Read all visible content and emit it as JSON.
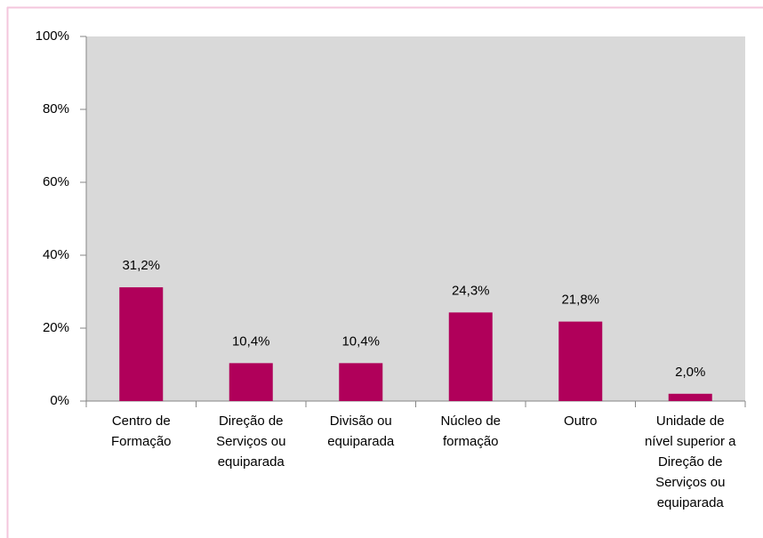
{
  "chart_data": {
    "type": "bar",
    "categories": [
      "Centro de Formação",
      "Direção de Serviços ou equiparada",
      "Divisão ou equiparada",
      "Núcleo de formação",
      "Outro",
      "Unidade de nível superior a Direção de Serviços ou equiparada"
    ],
    "values": [
      31.2,
      10.4,
      10.4,
      24.3,
      21.8,
      2.0
    ],
    "value_labels": [
      "31,2%",
      "10,4%",
      "10,4%",
      "24,3%",
      "21,8%",
      "2,0%"
    ],
    "color": "#b0005a",
    "ylim": [
      0,
      100
    ],
    "yticks": [
      {
        "value": 0,
        "label": "0%"
      },
      {
        "value": 20,
        "label": "20%"
      },
      {
        "value": 40,
        "label": "40%"
      },
      {
        "value": 60,
        "label": "60%"
      },
      {
        "value": 80,
        "label": "80%"
      },
      {
        "value": 100,
        "label": "100%"
      }
    ]
  }
}
